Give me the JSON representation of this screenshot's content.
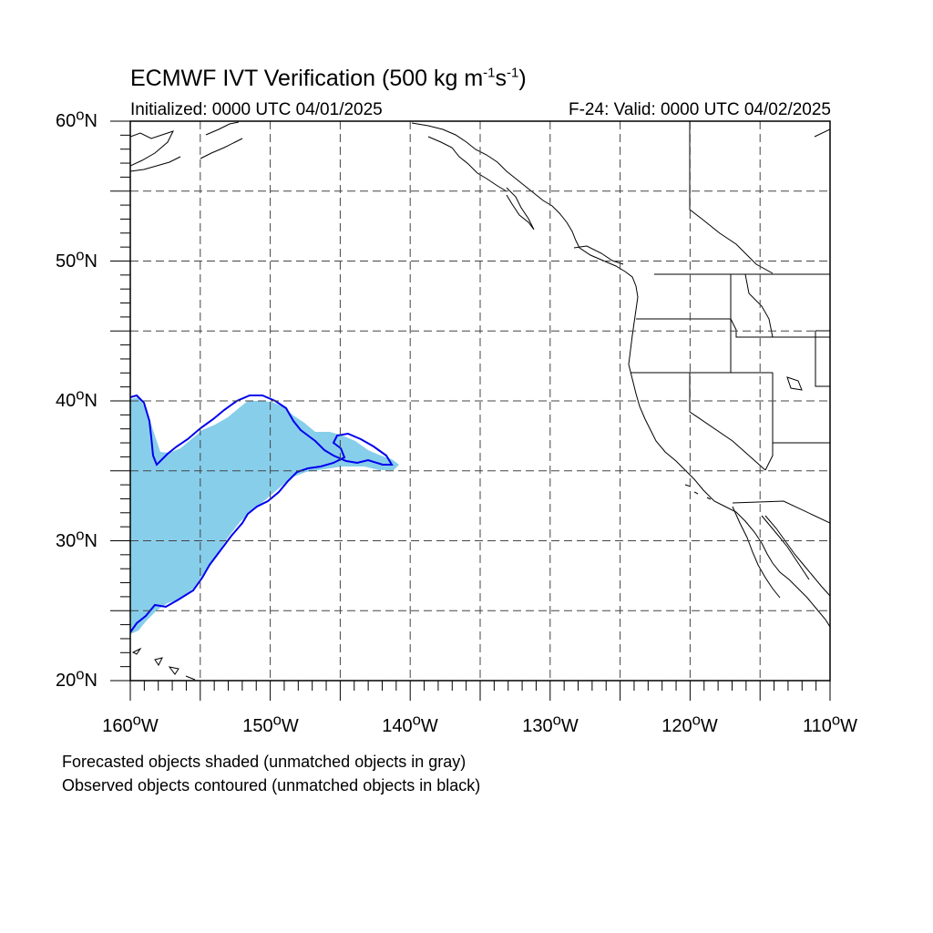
{
  "map": {
    "title_prefix": "ECMWF IVT Verification (500 kg m",
    "title_exp1": "-1",
    "title_mid": "s",
    "title_exp2": "-1",
    "title_suffix": ")",
    "initialized": "Initialized: 0000 UTC 04/01/2025",
    "valid": "F-24: Valid: 0000 UTC 04/02/2025",
    "lat_labels": [
      {
        "deg": "60",
        "hem": "N"
      },
      {
        "deg": "50",
        "hem": "N"
      },
      {
        "deg": "40",
        "hem": "N"
      },
      {
        "deg": "30",
        "hem": "N"
      },
      {
        "deg": "20",
        "hem": "N"
      }
    ],
    "lon_labels": [
      {
        "deg": "160",
        "hem": "W"
      },
      {
        "deg": "150",
        "hem": "W"
      },
      {
        "deg": "140",
        "hem": "W"
      },
      {
        "deg": "130",
        "hem": "W"
      },
      {
        "deg": "120",
        "hem": "W"
      },
      {
        "deg": "110",
        "hem": "W"
      }
    ],
    "degree_symbol": "o",
    "extent": {
      "lon_min": -160,
      "lon_max": -110,
      "lat_min": 20,
      "lat_max": 60
    },
    "gridline_interval_deg": 5,
    "gridline_style": "dashed",
    "colors": {
      "forecast_fill": "#87ceeb",
      "observed_contour": "#0000ee",
      "coastline": "#000000"
    },
    "notes": {
      "forecast": "Forecasted objects shaded (unmatched objects in gray)",
      "observed": "Observed objects contoured (unmatched objects in black)"
    }
  }
}
